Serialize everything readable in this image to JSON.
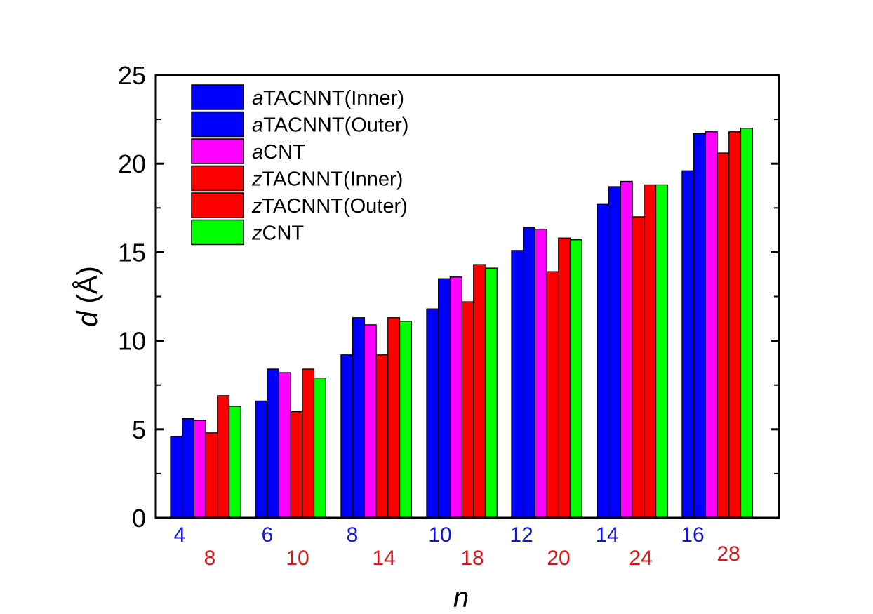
{
  "chart_data": {
    "type": "bar",
    "xlabel": "n",
    "ylabel_italic": "d",
    "ylabel_rest": " (Å)",
    "ylim": [
      0,
      25
    ],
    "yticks": [
      "0",
      "5",
      "10",
      "15",
      "20",
      "25"
    ],
    "grid": false,
    "legend_position": "top-left",
    "categories_armchair": [
      "4",
      "6",
      "8",
      "10",
      "12",
      "14",
      "16"
    ],
    "categories_zigzag": [
      "8",
      "10",
      "14",
      "18",
      "20",
      "24",
      "28"
    ],
    "category_colors": {
      "armchair": "#1515d8",
      "zigzag": "#dd1515"
    },
    "series": [
      {
        "prefix": "a",
        "name": "TACNNT(Inner)",
        "color": "#0000ff",
        "values": [
          4.6,
          6.6,
          9.2,
          11.8,
          15.1,
          17.7,
          19.6
        ]
      },
      {
        "prefix": "a",
        "name": "TACNNT(Outer)",
        "color": "#0000ff",
        "values": [
          5.6,
          8.4,
          11.3,
          13.5,
          16.4,
          18.7,
          21.7
        ]
      },
      {
        "prefix": "a",
        "name": "CNT",
        "color": "#ff00ff",
        "values": [
          5.5,
          8.2,
          10.9,
          13.6,
          16.3,
          19.0,
          21.8
        ]
      },
      {
        "prefix": "z",
        "name": "TACNNT(Inner)",
        "color": "#ff0000",
        "values": [
          4.8,
          6.0,
          9.2,
          12.2,
          13.9,
          17.0,
          20.6
        ]
      },
      {
        "prefix": "z",
        "name": "TACNNT(Outer)",
        "color": "#ff0000",
        "values": [
          6.9,
          8.4,
          11.3,
          14.3,
          15.8,
          18.8,
          21.8
        ]
      },
      {
        "prefix": "z",
        "name": "CNT",
        "color": "#00ff00",
        "values": [
          6.3,
          7.9,
          11.1,
          14.1,
          15.7,
          18.8,
          22.0
        ]
      }
    ]
  }
}
